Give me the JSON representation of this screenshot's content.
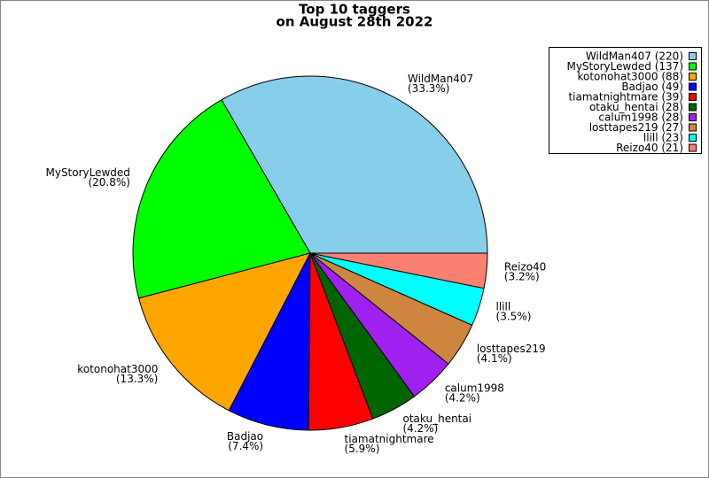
{
  "chart_data": {
    "type": "pie",
    "title": [
      "Top 10 taggers",
      "on August 28th 2022"
    ],
    "categories": [
      "WildMan407",
      "MyStoryLewded",
      "kotonohat3000",
      "Badjao",
      "tiamatnightmare",
      "otaku_hentai",
      "calum1998",
      "losttapes219",
      "llill",
      "Reizo40"
    ],
    "values": [
      220,
      137,
      88,
      49,
      39,
      28,
      28,
      27,
      23,
      21
    ],
    "percent_labels": [
      "(33.3%)",
      "(20.8%)",
      "(13.3%)",
      "(7.4%)",
      "(5.9%)",
      "(4.2%)",
      "(4.2%)",
      "(4.1%)",
      "(3.5%)",
      "(3.2%)"
    ],
    "legend_labels": [
      "WildMan407 (220)",
      "MyStoryLewded (137)",
      "kotonohat3000 (88)",
      "Badjao (49)",
      "tiamatnightmare (39)",
      "otaku_hentai (28)",
      "calum1998 (28)",
      "losttapes219 (27)",
      "llill (23)",
      "Reizo40 (21)"
    ],
    "colors": [
      "#87ceeb",
      "#00ff00",
      "#ffa500",
      "#0000ff",
      "#ff0000",
      "#006400",
      "#a020f0",
      "#cd853f",
      "#00ffff",
      "#fa8072"
    ],
    "legend": "upper right"
  }
}
